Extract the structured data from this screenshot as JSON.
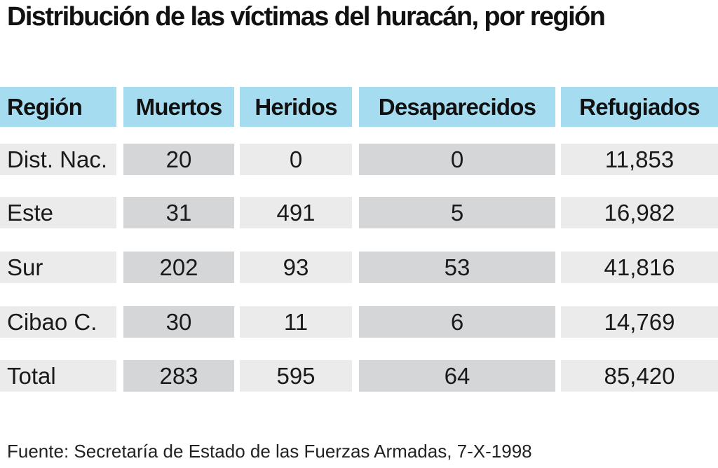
{
  "title": "Distribución de las víctimas del huracán, por región",
  "source": "Fuente: Secretaría de Estado de las Fuerzas Armadas, 7-X-1998",
  "colors": {
    "header_bg": "#a6dcf0",
    "row_light_bg": "#ebebeb",
    "row_dark_bg": "#d4d6d8"
  },
  "chart_data": {
    "type": "table",
    "title": "Distribución de las víctimas del huracán, por región",
    "columns": [
      "Región",
      "Muertos",
      "Heridos",
      "Desaparecidos",
      "Refugiados"
    ],
    "rows": [
      [
        "Dist. Nac.",
        "20",
        "0",
        "0",
        "11,853"
      ],
      [
        "Este",
        "31",
        "491",
        "5",
        "16,982"
      ],
      [
        "Sur",
        "202",
        "93",
        "53",
        "41,816"
      ],
      [
        "Cibao C.",
        "30",
        "11",
        "6",
        "14,769"
      ],
      [
        "Total",
        "283",
        "595",
        "64",
        "85,420"
      ]
    ]
  }
}
